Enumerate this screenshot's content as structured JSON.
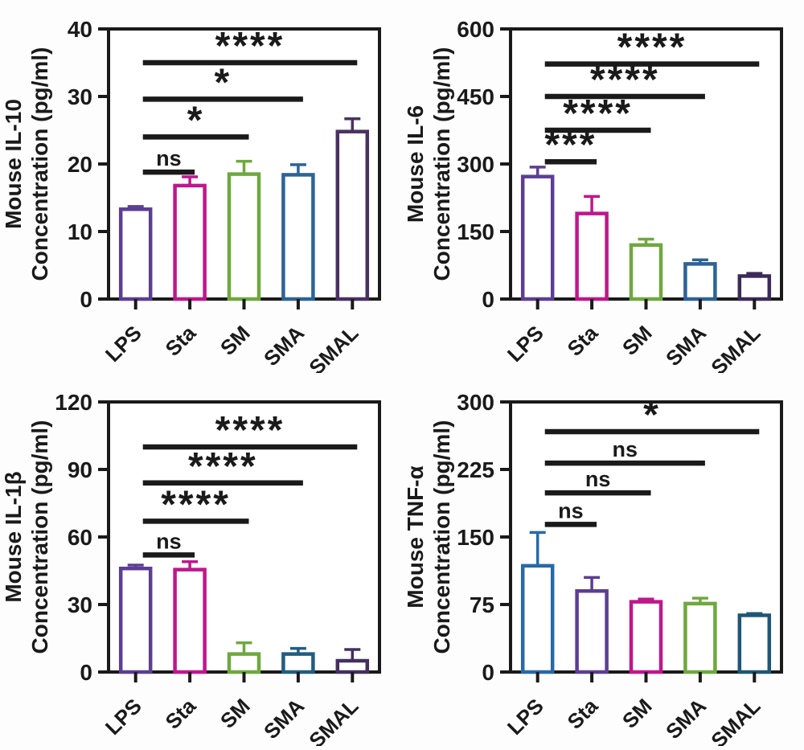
{
  "figure": {
    "kind": "cytokine-bar-chart-panel",
    "panel_titles": [
      "Mouse IL-10",
      "Mouse IL-6",
      "Mouse IL-1β",
      "Mouse TNF-α"
    ]
  },
  "style": {
    "axis_color": "#1a1a1a",
    "sig_color": "#1a1a1a",
    "text_color": "#1a1a1a",
    "plot_fill": "#ffffff",
    "background": "#fdfdfd"
  },
  "chart_data": [
    {
      "id": "il10",
      "type": "bar",
      "title": "Mouse IL-10",
      "ylabel_line1": "Mouse IL-10",
      "ylabel_line2": "Concentration (pg/ml)",
      "categories": [
        "LPS",
        "Sta",
        "SM",
        "SMA",
        "SMAL"
      ],
      "values": [
        13.3,
        16.8,
        18.5,
        18.4,
        24.8
      ],
      "errors_upper": [
        0.4,
        1.3,
        1.9,
        1.5,
        1.9
      ],
      "bar_colors": [
        "#5c3e94",
        "#c0168c",
        "#6fa83e",
        "#2d6397",
        "#4a3163"
      ],
      "bar_fill": "#ffffff",
      "ylim": [
        0,
        40
      ],
      "yticks": [
        0,
        10,
        20,
        30,
        40
      ],
      "grid": false,
      "legend": "none",
      "significance": [
        {
          "from": "LPS",
          "to": "Sta",
          "label": "ns",
          "y": 18.8
        },
        {
          "from": "LPS",
          "to": "SM",
          "label": "*",
          "y": 24.0
        },
        {
          "from": "LPS",
          "to": "SMA",
          "label": "*",
          "y": 29.6
        },
        {
          "from": "LPS",
          "to": "SMAL",
          "label": "****",
          "y": 35.0
        }
      ]
    },
    {
      "id": "il6",
      "type": "bar",
      "title": "Mouse IL-6",
      "ylabel_line1": "Mouse IL-6",
      "ylabel_line2": "Concentration (pg/ml)",
      "categories": [
        "LPS",
        "Sta",
        "SM",
        "SMA",
        "SMAL"
      ],
      "values": [
        272,
        190,
        120,
        78,
        51
      ],
      "errors_upper": [
        21,
        38,
        13,
        9,
        6
      ],
      "bar_colors": [
        "#5c3e94",
        "#c0168c",
        "#6fa83e",
        "#2d6397",
        "#3c2b58"
      ],
      "bar_fill": "#ffffff",
      "ylim": [
        0,
        600
      ],
      "yticks": [
        0,
        150,
        300,
        450,
        600
      ],
      "grid": false,
      "legend": "none",
      "significance": [
        {
          "from": "LPS",
          "to": "Sta",
          "label": "***",
          "y": 305
        },
        {
          "from": "LPS",
          "to": "SM",
          "label": "****",
          "y": 375
        },
        {
          "from": "LPS",
          "to": "SMA",
          "label": "****",
          "y": 450
        },
        {
          "from": "LPS",
          "to": "SMAL",
          "label": "****",
          "y": 522
        }
      ]
    },
    {
      "id": "il1b",
      "type": "bar",
      "title": "Mouse IL-1β",
      "ylabel_line1": "Mouse IL-1β",
      "ylabel_line2": "Concentration (pg/ml)",
      "categories": [
        "LPS",
        "Sta",
        "SM",
        "SMA",
        "SMAL"
      ],
      "values": [
        46,
        45.5,
        8,
        8,
        5
      ],
      "errors_upper": [
        1.5,
        3.5,
        5,
        2.5,
        5
      ],
      "bar_colors": [
        "#5c3e94",
        "#c0168c",
        "#6fa83e",
        "#225d80",
        "#43305e"
      ],
      "bar_fill": "#ffffff",
      "ylim": [
        0,
        120
      ],
      "yticks": [
        0,
        30,
        60,
        90,
        120
      ],
      "grid": false,
      "legend": "none",
      "significance": [
        {
          "from": "LPS",
          "to": "Sta",
          "label": "ns",
          "y": 52
        },
        {
          "from": "LPS",
          "to": "SM",
          "label": "****",
          "y": 67
        },
        {
          "from": "LPS",
          "to": "SMA",
          "label": "****",
          "y": 84
        },
        {
          "from": "LPS",
          "to": "SMAL",
          "label": "****",
          "y": 100
        }
      ]
    },
    {
      "id": "tnfa",
      "type": "bar",
      "title": "Mouse TNF-α",
      "ylabel_line1": "Mouse TNF-α",
      "ylabel_line2": "Concentration (pg/ml)",
      "categories": [
        "LPS",
        "Sta",
        "SM",
        "SMA",
        "SMAL"
      ],
      "values": [
        118,
        90,
        78,
        76,
        63
      ],
      "errors_upper": [
        37,
        15,
        3,
        6,
        2
      ],
      "bar_colors": [
        "#2769a8",
        "#5c3e94",
        "#c0168c",
        "#6fa83e",
        "#1f5675"
      ],
      "bar_fill": "#ffffff",
      "ylim": [
        0,
        300
      ],
      "yticks": [
        0,
        75,
        150,
        225,
        300
      ],
      "grid": false,
      "legend": "none",
      "significance": [
        {
          "from": "LPS",
          "to": "Sta",
          "label": "ns",
          "y": 164
        },
        {
          "from": "LPS",
          "to": "SM",
          "label": "ns",
          "y": 199
        },
        {
          "from": "LPS",
          "to": "SMA",
          "label": "ns",
          "y": 232
        },
        {
          "from": "LPS",
          "to": "SMAL",
          "label": "*",
          "y": 267
        }
      ]
    }
  ]
}
